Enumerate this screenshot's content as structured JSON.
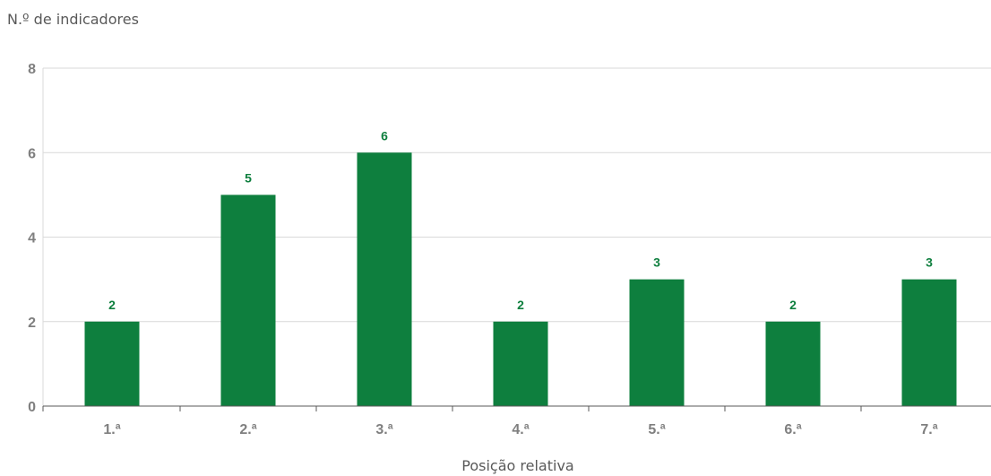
{
  "chart_data": {
    "type": "bar",
    "ylabel": "N.º de indicadores",
    "xlabel": "Posição relativa",
    "categories": [
      "1.ª",
      "2.ª",
      "3.ª",
      "4.ª",
      "5.ª",
      "6.ª",
      "7.ª"
    ],
    "values": [
      2,
      5,
      6,
      2,
      3,
      2,
      3
    ],
    "data_labels": [
      "2",
      "5",
      "6",
      "2",
      "3",
      "2",
      "3"
    ],
    "yticks": [
      "0",
      "2",
      "4",
      "6",
      "8"
    ],
    "ylim": [
      0,
      8
    ],
    "grid": true,
    "bar_color": "#0e7f3e",
    "label_color": "#0e7f3e",
    "grid_color": "#d9d9d9",
    "axis_color": "#595959"
  }
}
